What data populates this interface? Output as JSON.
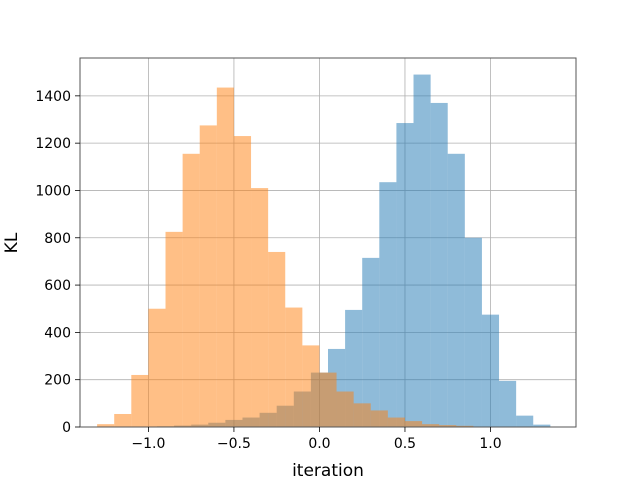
{
  "chart_data": {
    "type": "bar",
    "subtype": "overlapping-histogram",
    "title": "",
    "xlabel": "iteration",
    "ylabel": "KL",
    "xlim": [
      -1.4,
      1.5
    ],
    "ylim": [
      0,
      1560
    ],
    "xticks": [
      -1.0,
      -0.5,
      0.0,
      0.5,
      1.0
    ],
    "xtick_labels": [
      "−1.0",
      "−0.5",
      "0.0",
      "0.5",
      "1.0"
    ],
    "yticks": [
      0,
      200,
      400,
      600,
      800,
      1000,
      1200,
      1400
    ],
    "yticks_labels": [
      "0",
      "200",
      "400",
      "600",
      "800",
      "1000",
      "1200",
      "1400"
    ],
    "grid": true,
    "legend": "none",
    "bin_width": 0.1,
    "series": [
      {
        "color": "#1f77b4",
        "opacity": 0.5,
        "bin_starts": [
          -0.95,
          -0.85,
          -0.75,
          -0.65,
          -0.55,
          -0.45,
          -0.35,
          -0.25,
          -0.15,
          -0.05,
          0.05,
          0.15,
          0.25,
          0.35,
          0.45,
          0.55,
          0.65,
          0.75,
          0.85,
          0.95,
          1.05,
          1.15,
          1.25
        ],
        "values": [
          3,
          6,
          10,
          18,
          30,
          40,
          60,
          90,
          150,
          230,
          330,
          495,
          715,
          1035,
          1285,
          1490,
          1370,
          1155,
          800,
          475,
          195,
          48,
          10
        ]
      },
      {
        "color": "#ff7f0e",
        "opacity": 0.5,
        "bin_starts": [
          -1.3,
          -1.2,
          -1.1,
          -1.0,
          -0.9,
          -0.8,
          -0.7,
          -0.6,
          -0.5,
          -0.4,
          -0.3,
          -0.2,
          -0.1,
          0.0,
          0.1,
          0.2,
          0.3,
          0.4,
          0.5,
          0.6,
          0.7,
          0.8
        ],
        "values": [
          12,
          55,
          220,
          500,
          825,
          1155,
          1275,
          1435,
          1230,
          1010,
          740,
          505,
          345,
          230,
          150,
          100,
          70,
          40,
          25,
          12,
          8,
          5
        ]
      }
    ]
  }
}
